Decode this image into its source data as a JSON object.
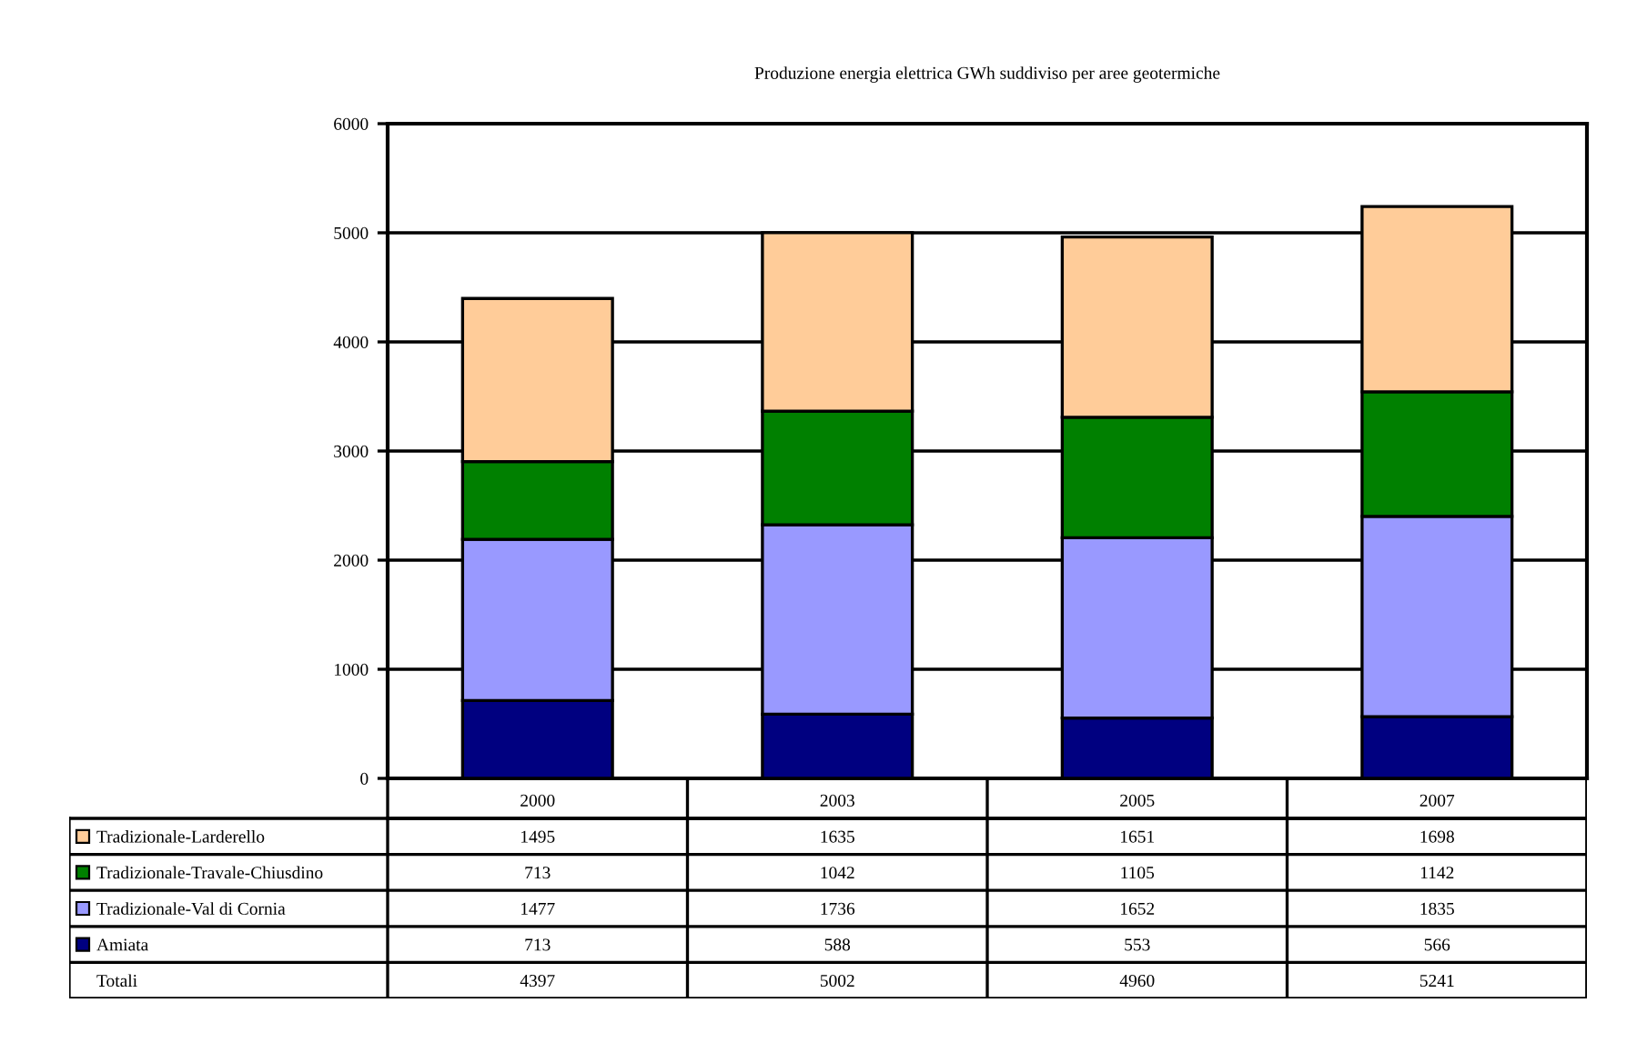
{
  "chart_data": {
    "type": "bar",
    "stacked": true,
    "title": "Produzione energia elettrica GWh suddiviso per aree geotermiche",
    "categories": [
      "2000",
      "2003",
      "2005",
      "2007"
    ],
    "series": [
      {
        "name": "Amiata",
        "color": "#000080",
        "values": [
          713,
          588,
          553,
          566
        ]
      },
      {
        "name": "Tradizionale-Val di Cornia",
        "color": "#9999ff",
        "values": [
          1477,
          1736,
          1652,
          1835
        ]
      },
      {
        "name": "Tradizionale-Travale-Chiusdino",
        "color": "#008000",
        "values": [
          713,
          1042,
          1105,
          1142
        ]
      },
      {
        "name": "Tradizionale-Larderello",
        "color": "#ffcc99",
        "values": [
          1495,
          1635,
          1651,
          1698
        ]
      }
    ],
    "annotations": [
      "Totali",
      "4397",
      "5002",
      "4960",
      "5241"
    ],
    "ylim": [
      0,
      6000
    ],
    "yticks": [
      0,
      1000,
      2000,
      3000,
      4000,
      5000,
      6000
    ],
    "grid": "y",
    "data_labels": true,
    "legend": "bottom"
  }
}
